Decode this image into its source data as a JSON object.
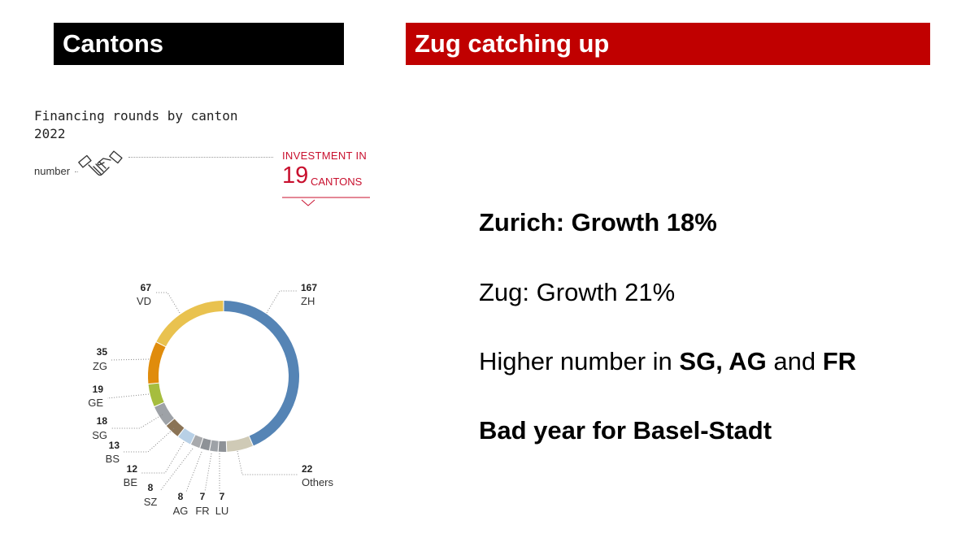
{
  "header": {
    "left_title": "Cantons",
    "right_title": "Zug catching up"
  },
  "infographic": {
    "title": "Financing rounds by canton",
    "year": "2022",
    "unit_label": "number",
    "investment_line1": "INVESTMENT IN",
    "investment_number": "19",
    "investment_unit": "CANTONS"
  },
  "bullets": {
    "zurich": "Zurich: Growth 18%",
    "zug": "Zug: Growth 21%",
    "higher_prefix": "Higher number in ",
    "higher_bold1": "SG, AG",
    "higher_mid": " and ",
    "higher_bold2": "FR",
    "basel": "Bad year for Basel-Stadt"
  },
  "colors": {
    "header_left": "#000000",
    "header_right": "#c00000",
    "accent_red": "#c8102e"
  },
  "chart_data": {
    "type": "pie",
    "style": "donut",
    "title": "Financing rounds by canton",
    "subtitle": "2022",
    "categories": [
      "ZH",
      "Others",
      "LU",
      "FR",
      "AG",
      "SZ",
      "BE",
      "BS",
      "SG",
      "GE",
      "ZG",
      "VD"
    ],
    "values": [
      167,
      22,
      7,
      7,
      8,
      8,
      12,
      13,
      18,
      19,
      35,
      67
    ],
    "colors": [
      "#5584b5",
      "#cfcab6",
      "#8e9297",
      "#9ea2a7",
      "#8e9297",
      "#a8aaad",
      "#b8d0e6",
      "#8a7355",
      "#9ea2a7",
      "#a6bd3e",
      "#e08c0c",
      "#e9c24f"
    ],
    "label_values": [
      "167",
      "22",
      "7",
      "7",
      "8",
      "8",
      "12",
      "13",
      "18",
      "19",
      "35",
      "67"
    ]
  }
}
